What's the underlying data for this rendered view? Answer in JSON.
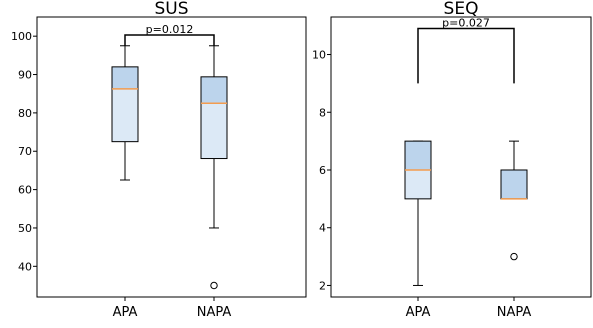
{
  "chart_data": [
    {
      "type": "box",
      "title": "SUS",
      "categories": [
        "APA",
        "NAPA"
      ],
      "ylim": [
        32,
        105
      ],
      "yticks": [
        40,
        50,
        60,
        70,
        80,
        90,
        100
      ],
      "boxes": [
        {
          "category": "APA",
          "whisker_low": 62.5,
          "q1": 72.5,
          "median": 86.25,
          "q3": 92,
          "whisker_high": 97.5,
          "outliers": []
        },
        {
          "category": "NAPA",
          "whisker_low": 50,
          "q1": 68.1,
          "median": 82.5,
          "q3": 89.4,
          "whisker_high": 97.5,
          "outliers": [
            35
          ]
        }
      ],
      "annotation": {
        "text": "p=0.012",
        "y": 100.3,
        "drop": 97.5
      }
    },
    {
      "type": "box",
      "title": "SEQ",
      "categories": [
        "APA",
        "NAPA"
      ],
      "ylim": [
        1.6,
        11.3
      ],
      "yticks": [
        2,
        4,
        6,
        8,
        10
      ],
      "boxes": [
        {
          "category": "APA",
          "whisker_low": 2,
          "q1": 5,
          "median": 6,
          "q3": 7,
          "whisker_high": 7,
          "outliers": []
        },
        {
          "category": "NAPA",
          "whisker_low": 5,
          "q1": 5,
          "median": 5,
          "q3": 6,
          "whisker_high": 7,
          "outliers": [
            3
          ]
        }
      ],
      "annotation": {
        "text": "p=0.027",
        "y": 10.9,
        "drop": 9
      }
    }
  ],
  "colors": {
    "box_upper": "#bcd4ec",
    "box_lower": "#dce9f6",
    "median": "#f39c4f"
  }
}
